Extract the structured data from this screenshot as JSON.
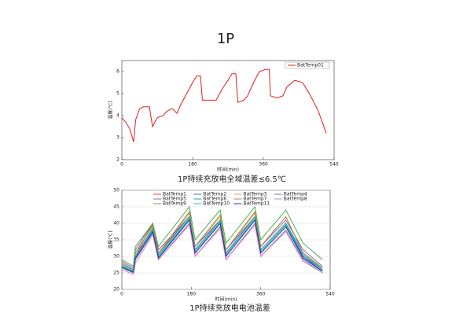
{
  "title": "1P",
  "chart_data": [
    {
      "type": "line",
      "caption": "1P持续充放电全域温差≤6.5℃",
      "xlabel": "时间(min)",
      "ylabel": "温度(℃)",
      "x": [
        0,
        10,
        20,
        30,
        35,
        45,
        55,
        70,
        78,
        90,
        105,
        115,
        125,
        130,
        140,
        150,
        165,
        180,
        190,
        200,
        205,
        220,
        240,
        255,
        270,
        280,
        290,
        295,
        310,
        320,
        335,
        350,
        365,
        375,
        378,
        395,
        410,
        420,
        440,
        460,
        480,
        500,
        520
      ],
      "series": [
        {
          "name": "BatTemp01",
          "color": "#e31a1c",
          "values": [
            3.9,
            3.7,
            3.4,
            2.8,
            3.8,
            4.3,
            4.4,
            4.4,
            3.5,
            3.9,
            4.0,
            4.2,
            4.3,
            4.3,
            4.1,
            4.5,
            5.0,
            5.5,
            5.8,
            5.8,
            4.7,
            4.7,
            4.7,
            5.2,
            5.6,
            5.9,
            5.9,
            4.6,
            4.7,
            4.9,
            5.5,
            6.0,
            6.1,
            6.1,
            4.9,
            4.8,
            4.9,
            5.3,
            5.6,
            5.5,
            4.9,
            4.2,
            3.2
          ]
        }
      ],
      "xlim": [
        0,
        540
      ],
      "xticks": [
        0,
        180,
        360,
        540
      ],
      "ylim": [
        2,
        6.5
      ],
      "yticks": [
        2,
        3,
        4,
        5,
        6
      ],
      "grid": false,
      "legend": "top-right"
    },
    {
      "type": "line",
      "caption": "1P持续充放电电池温差",
      "xlabel": "时间(min)",
      "ylabel": "温度(℃)",
      "x": [
        0,
        30,
        35,
        80,
        95,
        175,
        190,
        255,
        270,
        345,
        360,
        425,
        470,
        520
      ],
      "series": [
        {
          "name": "BatTemp1",
          "color": "#e8403a",
          "values": [
            27.5,
            26,
            30,
            40,
            31,
            42,
            32,
            41,
            31,
            42,
            32,
            40,
            30,
            26
          ]
        },
        {
          "name": "BatTemp2",
          "color": "#3b6fd1",
          "values": [
            27,
            25.5,
            29,
            38,
            30,
            41,
            31,
            40,
            30,
            41,
            31,
            39,
            30,
            25.5
          ]
        },
        {
          "name": "BatTemp3",
          "color": "#f2a33a",
          "values": [
            28,
            26,
            31,
            39,
            31,
            43,
            33,
            42,
            32,
            43,
            33,
            42,
            31,
            26.5
          ]
        },
        {
          "name": "BatTemp4",
          "color": "#6a7fa8",
          "values": [
            26.5,
            25,
            29,
            37,
            29,
            40,
            30,
            39,
            29,
            40,
            30,
            38,
            29,
            25
          ]
        },
        {
          "name": "BatTemp5",
          "color": "#9b59b6",
          "values": [
            28.5,
            26.5,
            32,
            40,
            32,
            42,
            33,
            41,
            32,
            42,
            33,
            41,
            32,
            27
          ]
        },
        {
          "name": "BatTemp6",
          "color": "#2aa198",
          "values": [
            27,
            25.5,
            30,
            38.5,
            30.5,
            42,
            32,
            41,
            31,
            42,
            32,
            40,
            31,
            26
          ]
        },
        {
          "name": "BatTemp7",
          "color": "#a0884a",
          "values": [
            28,
            26,
            31,
            39.5,
            31,
            43.5,
            33,
            42.5,
            32,
            43.5,
            33,
            42,
            31,
            26.5
          ]
        },
        {
          "name": "BatTemp8",
          "color": "#e377c2",
          "values": [
            26,
            24.5,
            28,
            36.5,
            29,
            39.5,
            30,
            38.5,
            29,
            39.5,
            30,
            37.5,
            28.5,
            25
          ]
        },
        {
          "name": "BatTemp9",
          "color": "#4caf50",
          "values": [
            29,
            27,
            33,
            40,
            33,
            45,
            35,
            44,
            34,
            45,
            35,
            44,
            34,
            29
          ]
        },
        {
          "name": "BatTemp10",
          "color": "#17becf",
          "values": [
            27.5,
            25.8,
            30,
            38,
            30,
            41.5,
            31.5,
            40.5,
            30.5,
            41.5,
            31.5,
            39.5,
            30.5,
            25.8
          ]
        },
        {
          "name": "BatTemp11",
          "color": "#283593",
          "values": [
            26.8,
            25.2,
            29.5,
            37.5,
            29.5,
            41,
            31,
            40,
            30,
            41,
            31,
            39,
            29.5,
            25.5
          ]
        }
      ],
      "xlim": [
        0,
        540
      ],
      "xticks": [
        0,
        180,
        360,
        540
      ],
      "ylim": [
        20,
        50
      ],
      "yticks": [
        20,
        25,
        30,
        35,
        40,
        45,
        50
      ],
      "grid": true,
      "legend": "top"
    }
  ]
}
